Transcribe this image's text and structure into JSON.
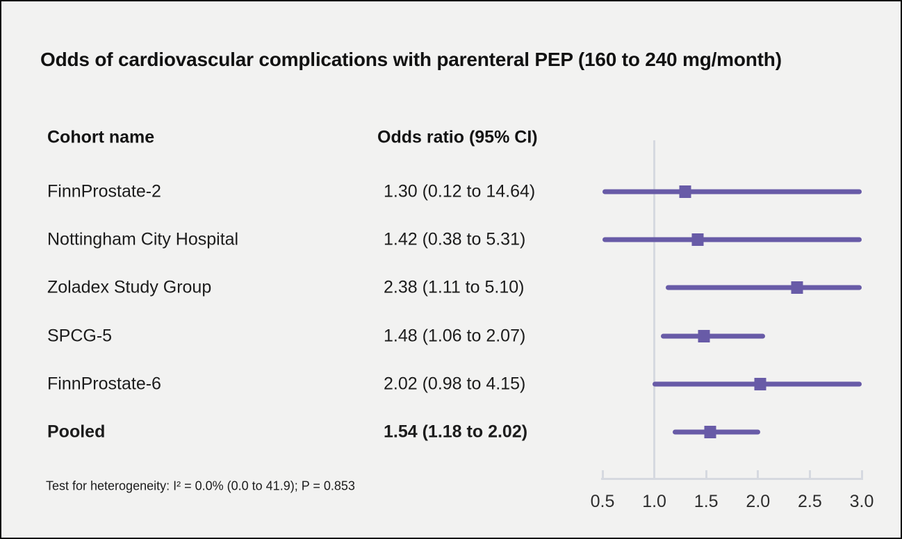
{
  "title": "Odds of cardiovascular complications with parenteral PEP (160 to 240 mg/month)",
  "columns": {
    "cohort": "Cohort name",
    "odds": "Odds ratio (95% CI)"
  },
  "footnote": "Test for heterogeneity: I² = 0.0% (0.0 to 41.9); P = 0.853",
  "colors": {
    "marker": "#685BA7",
    "grid": "#D6D9E0",
    "background": "#F2F2F1",
    "text": "#1c1c1c"
  },
  "chart_data": {
    "type": "forest",
    "title": "Odds of cardiovascular complications with parenteral PEP (160 to 240 mg/month)",
    "x_range": [
      0.5,
      3.0
    ],
    "reference_value": 1.0,
    "tick_values": [
      0.5,
      1.0,
      1.5,
      2.0,
      2.5,
      3.0
    ],
    "tick_labels": [
      "0.5",
      "1.0",
      "1.5",
      "2.0",
      "2.5",
      "3.0"
    ],
    "rows": [
      {
        "label": "FinnProstate-2",
        "or_text": "1.30 (0.12 to 14.64)",
        "or": 1.3,
        "ci_low": 0.12,
        "ci_high": 14.64,
        "pooled": false
      },
      {
        "label": "Nottingham City Hospital",
        "or_text": "1.42 (0.38 to 5.31)",
        "or": 1.42,
        "ci_low": 0.38,
        "ci_high": 5.31,
        "pooled": false
      },
      {
        "label": "Zoladex Study Group",
        "or_text": "2.38 (1.11 to 5.10)",
        "or": 2.38,
        "ci_low": 1.11,
        "ci_high": 5.1,
        "pooled": false
      },
      {
        "label": "SPCG-5",
        "or_text": "1.48 (1.06 to 2.07)",
        "or": 1.48,
        "ci_low": 1.06,
        "ci_high": 2.07,
        "pooled": false
      },
      {
        "label": "FinnProstate-6",
        "or_text": "2.02 (0.98 to 4.15)",
        "or": 2.02,
        "ci_low": 0.98,
        "ci_high": 4.15,
        "pooled": false
      },
      {
        "label": "Pooled",
        "or_text": "1.54 (1.18 to 2.02)",
        "or": 1.54,
        "ci_low": 1.18,
        "ci_high": 2.02,
        "pooled": true
      }
    ]
  }
}
